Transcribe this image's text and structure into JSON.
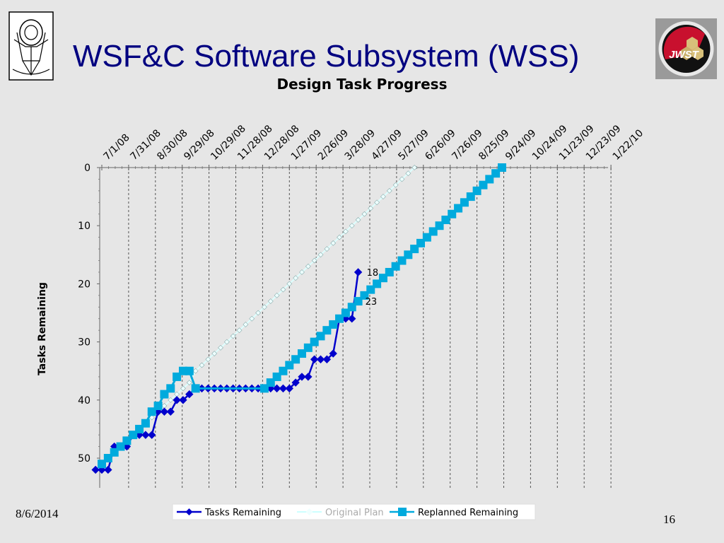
{
  "slide": {
    "title": "WSF&C Software Subsystem (WSS)",
    "date": "8/6/2014",
    "page_number": "16",
    "logo_right_text": "JWST"
  },
  "chart_data": {
    "type": "line",
    "title": "Design Task Progress",
    "xlabel": "",
    "ylabel": "Tasks Remaining",
    "x_ticks": [
      "7/1/08",
      "7/31/08",
      "8/30/08",
      "9/29/08",
      "10/29/08",
      "11/28/08",
      "12/28/08",
      "1/27/09",
      "2/26/09",
      "3/28/09",
      "4/27/09",
      "5/27/09",
      "6/26/09",
      "7/26/09",
      "8/25/09",
      "9/24/09",
      "10/24/09",
      "11/23/09",
      "12/23/09",
      "1/22/10"
    ],
    "ylim": [
      0,
      53
    ],
    "y_inverted": true,
    "y_ticks": [
      0,
      10,
      20,
      30,
      40,
      50
    ],
    "grid": "vertical dashed",
    "legend_position": "bottom",
    "series": [
      {
        "name": "Tasks Remaining",
        "color": "#0000cc",
        "marker": "diamond",
        "points": [
          [
            "6/24/08",
            52
          ],
          [
            "7/1/08",
            52
          ],
          [
            "7/8/08",
            52
          ],
          [
            "7/15/08",
            48
          ],
          [
            "7/22/08",
            48
          ],
          [
            "7/29/08",
            48
          ],
          [
            "8/5/08",
            46
          ],
          [
            "8/12/08",
            46
          ],
          [
            "8/19/08",
            46
          ],
          [
            "8/26/08",
            46
          ],
          [
            "9/2/08",
            42
          ],
          [
            "9/9/08",
            42
          ],
          [
            "9/16/08",
            42
          ],
          [
            "9/23/08",
            40
          ],
          [
            "9/30/08",
            40
          ],
          [
            "10/7/08",
            39
          ],
          [
            "10/14/08",
            38
          ],
          [
            "10/21/08",
            38
          ],
          [
            "10/28/08",
            38
          ],
          [
            "11/4/08",
            38
          ],
          [
            "11/11/08",
            38
          ],
          [
            "11/18/08",
            38
          ],
          [
            "11/25/08",
            38
          ],
          [
            "12/2/08",
            38
          ],
          [
            "12/9/08",
            38
          ],
          [
            "12/16/08",
            38
          ],
          [
            "12/23/08",
            38
          ],
          [
            "12/30/08",
            38
          ],
          [
            "1/6/09",
            38
          ],
          [
            "1/13/09",
            38
          ],
          [
            "1/20/09",
            38
          ],
          [
            "1/27/09",
            38
          ],
          [
            "2/3/09",
            37
          ],
          [
            "2/10/09",
            36
          ],
          [
            "2/17/09",
            36
          ],
          [
            "2/24/09",
            33
          ],
          [
            "3/3/09",
            33
          ],
          [
            "3/10/09",
            33
          ],
          [
            "3/17/09",
            32
          ],
          [
            "3/24/09",
            26
          ],
          [
            "3/31/09",
            26
          ],
          [
            "4/7/09",
            26
          ],
          [
            "4/14/09",
            18
          ]
        ],
        "end_label": "18"
      },
      {
        "name": "Original Plan",
        "color": "#ccffff",
        "marker": "diamond",
        "points": [
          [
            "6/24/08",
            52
          ],
          [
            "7/1/08",
            51
          ],
          [
            "7/8/08",
            50
          ],
          [
            "7/15/08",
            49
          ],
          [
            "7/22/08",
            48
          ],
          [
            "7/29/08",
            47
          ],
          [
            "8/5/08",
            46
          ],
          [
            "8/12/08",
            45
          ],
          [
            "8/19/08",
            44
          ],
          [
            "8/26/08",
            43
          ],
          [
            "9/2/08",
            42
          ],
          [
            "9/9/08",
            41
          ],
          [
            "9/16/08",
            40
          ],
          [
            "9/23/08",
            39
          ],
          [
            "9/30/08",
            38
          ],
          [
            "10/7/08",
            37
          ],
          [
            "10/14/08",
            35
          ],
          [
            "10/21/08",
            34
          ],
          [
            "10/28/08",
            33
          ],
          [
            "11/4/08",
            32
          ],
          [
            "11/11/08",
            31
          ],
          [
            "11/18/08",
            30
          ],
          [
            "11/25/08",
            29
          ],
          [
            "12/2/08",
            28
          ],
          [
            "12/9/08",
            27
          ],
          [
            "12/16/08",
            26
          ],
          [
            "12/23/08",
            25
          ],
          [
            "12/30/08",
            24
          ],
          [
            "1/6/09",
            23
          ],
          [
            "1/13/09",
            22
          ],
          [
            "1/20/09",
            21
          ],
          [
            "1/27/09",
            20
          ],
          [
            "2/3/09",
            19
          ],
          [
            "2/10/09",
            18
          ],
          [
            "2/17/09",
            17
          ],
          [
            "2/24/09",
            16
          ],
          [
            "3/3/09",
            15
          ],
          [
            "3/10/09",
            14
          ],
          [
            "3/17/09",
            13
          ],
          [
            "3/24/09",
            12
          ],
          [
            "3/31/09",
            11
          ],
          [
            "4/7/09",
            10
          ],
          [
            "4/14/09",
            9
          ],
          [
            "4/21/09",
            8
          ],
          [
            "4/28/09",
            7
          ],
          [
            "5/5/09",
            6
          ],
          [
            "5/12/09",
            5
          ],
          [
            "5/19/09",
            4
          ],
          [
            "5/26/09",
            3
          ],
          [
            "6/2/09",
            2
          ],
          [
            "6/9/09",
            1
          ],
          [
            "6/16/09",
            0
          ]
        ]
      },
      {
        "name": "Replanned Remaining",
        "color": "#00aadd",
        "marker": "square",
        "points": [
          [
            "7/1/08",
            51
          ],
          [
            "7/8/08",
            50
          ],
          [
            "7/15/08",
            49
          ],
          [
            "7/22/08",
            48
          ],
          [
            "7/29/08",
            47
          ],
          [
            "8/5/08",
            46
          ],
          [
            "8/12/08",
            45
          ],
          [
            "8/19/08",
            44
          ],
          [
            "8/26/08",
            42
          ],
          [
            "9/2/08",
            41
          ],
          [
            "9/9/08",
            39
          ],
          [
            "9/16/08",
            38
          ],
          [
            "9/23/08",
            36
          ],
          [
            "9/30/08",
            35
          ],
          [
            "10/7/08",
            35
          ],
          [
            "10/14/08",
            38
          ],
          [
            "12/30/08",
            38
          ],
          [
            "1/6/09",
            37
          ],
          [
            "1/13/09",
            36
          ],
          [
            "1/20/09",
            35
          ],
          [
            "1/27/09",
            34
          ],
          [
            "2/3/09",
            33
          ],
          [
            "2/10/09",
            32
          ],
          [
            "2/17/09",
            31
          ],
          [
            "2/24/09",
            30
          ],
          [
            "3/3/09",
            29
          ],
          [
            "3/10/09",
            28
          ],
          [
            "3/17/09",
            27
          ],
          [
            "3/24/09",
            26
          ],
          [
            "3/31/09",
            25
          ],
          [
            "4/7/09",
            24
          ],
          [
            "4/14/09",
            23
          ],
          [
            "4/21/09",
            22
          ],
          [
            "4/28/09",
            21
          ],
          [
            "5/5/09",
            20
          ],
          [
            "5/12/09",
            19
          ],
          [
            "5/19/09",
            18
          ],
          [
            "5/26/09",
            17
          ],
          [
            "6/2/09",
            16
          ],
          [
            "6/9/09",
            15
          ],
          [
            "6/16/09",
            14
          ],
          [
            "6/23/09",
            13
          ],
          [
            "6/30/09",
            12
          ],
          [
            "7/7/09",
            11
          ],
          [
            "7/14/09",
            10
          ],
          [
            "7/21/09",
            9
          ],
          [
            "7/28/09",
            8
          ],
          [
            "8/4/09",
            7
          ],
          [
            "8/11/09",
            6
          ],
          [
            "8/18/09",
            5
          ],
          [
            "8/25/09",
            4
          ],
          [
            "9/1/09",
            3
          ],
          [
            "9/8/09",
            2
          ],
          [
            "9/15/09",
            1
          ],
          [
            "9/22/09",
            0
          ]
        ],
        "label_point": [
          "4/14/09",
          23
        ],
        "label": "23"
      }
    ]
  }
}
